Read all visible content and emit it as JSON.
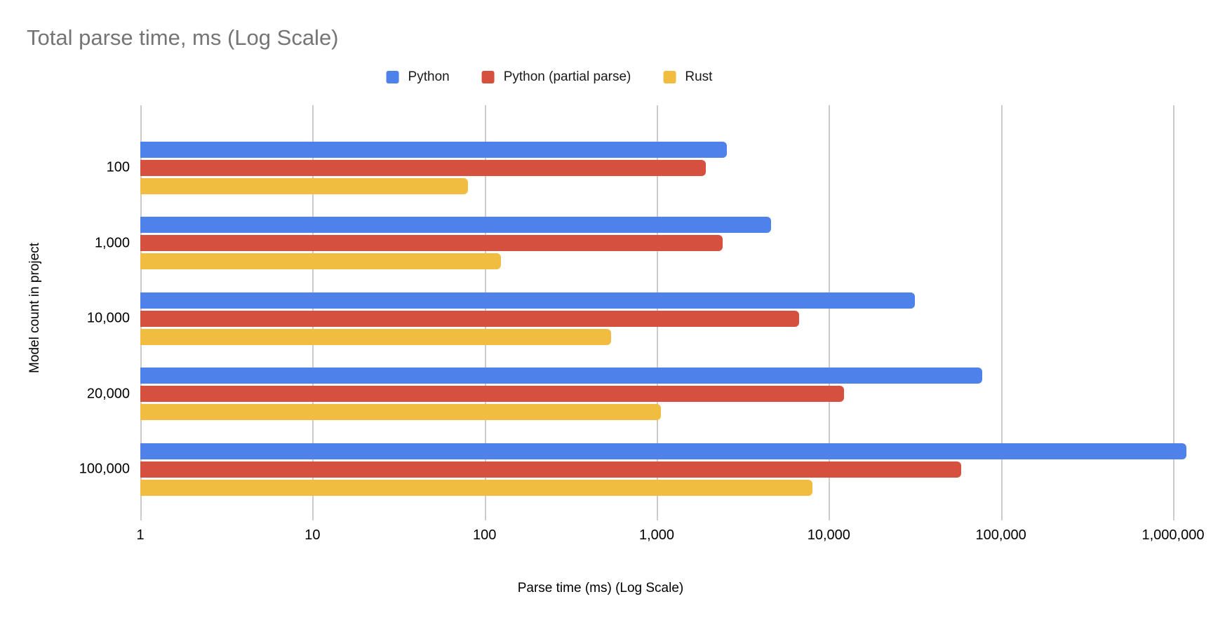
{
  "chart_data": {
    "type": "bar",
    "orientation": "horizontal",
    "title": "Total parse time, ms (Log Scale)",
    "xlabel": "Parse time (ms) (Log Scale)",
    "ylabel": "Model count in project",
    "x_scale": "log",
    "x_range": [
      1,
      1000000
    ],
    "x_ticks": [
      "1",
      "10",
      "100",
      "1,000",
      "10,000",
      "100,000",
      "1,000,000"
    ],
    "grid": "vertical-only",
    "legend_position": "top-center",
    "categories": [
      "100",
      "1,000",
      "10,000",
      "20,000",
      "100,000"
    ],
    "series": [
      {
        "name": "Python",
        "color": "#4e82ea",
        "values": [
          2550,
          4600,
          31500,
          77600,
          1200000
        ]
      },
      {
        "name": "Python (partial parse)",
        "color": "#d6503f",
        "values": [
          1925,
          2420,
          6700,
          12300,
          59000
        ]
      },
      {
        "name": "Rust",
        "color": "#f0bd41",
        "values": [
          80,
          124,
          545,
          1060,
          8000
        ]
      }
    ],
    "title_color": "#757575",
    "gridline_color": "#cccccc"
  }
}
